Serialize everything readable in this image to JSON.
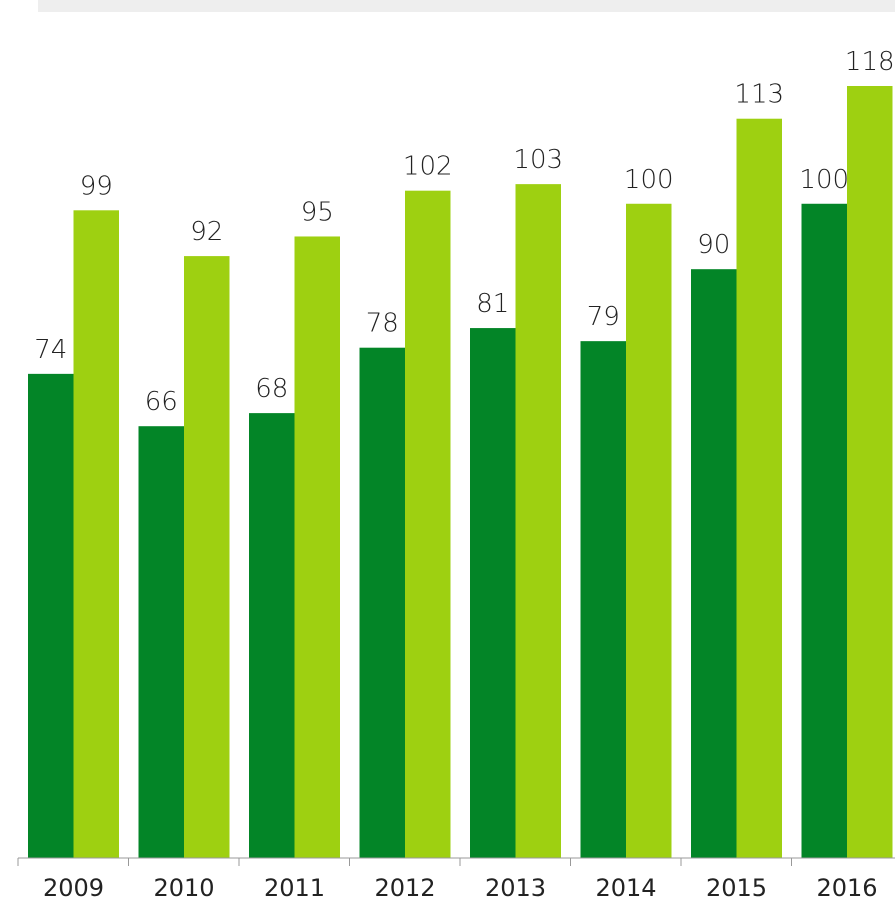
{
  "chart_data": {
    "type": "bar",
    "categories": [
      "2009",
      "2010",
      "2011",
      "2012",
      "2013",
      "2014",
      "2015",
      "2016"
    ],
    "series": [
      {
        "values": [
          74,
          66,
          68,
          78,
          81,
          79,
          90,
          100
        ],
        "color": "#038527"
      },
      {
        "values": [
          99,
          92,
          95,
          102,
          103,
          100,
          113,
          118
        ],
        "color": "#9ed011"
      }
    ],
    "ylim": [
      0,
      118
    ],
    "grid": false,
    "legend": "none",
    "value_labels": [
      "74",
      "99",
      "66",
      "92",
      "68",
      "95",
      "78",
      "102",
      "81",
      "103",
      "79",
      "100",
      "90",
      "113",
      "100",
      "118"
    ]
  }
}
